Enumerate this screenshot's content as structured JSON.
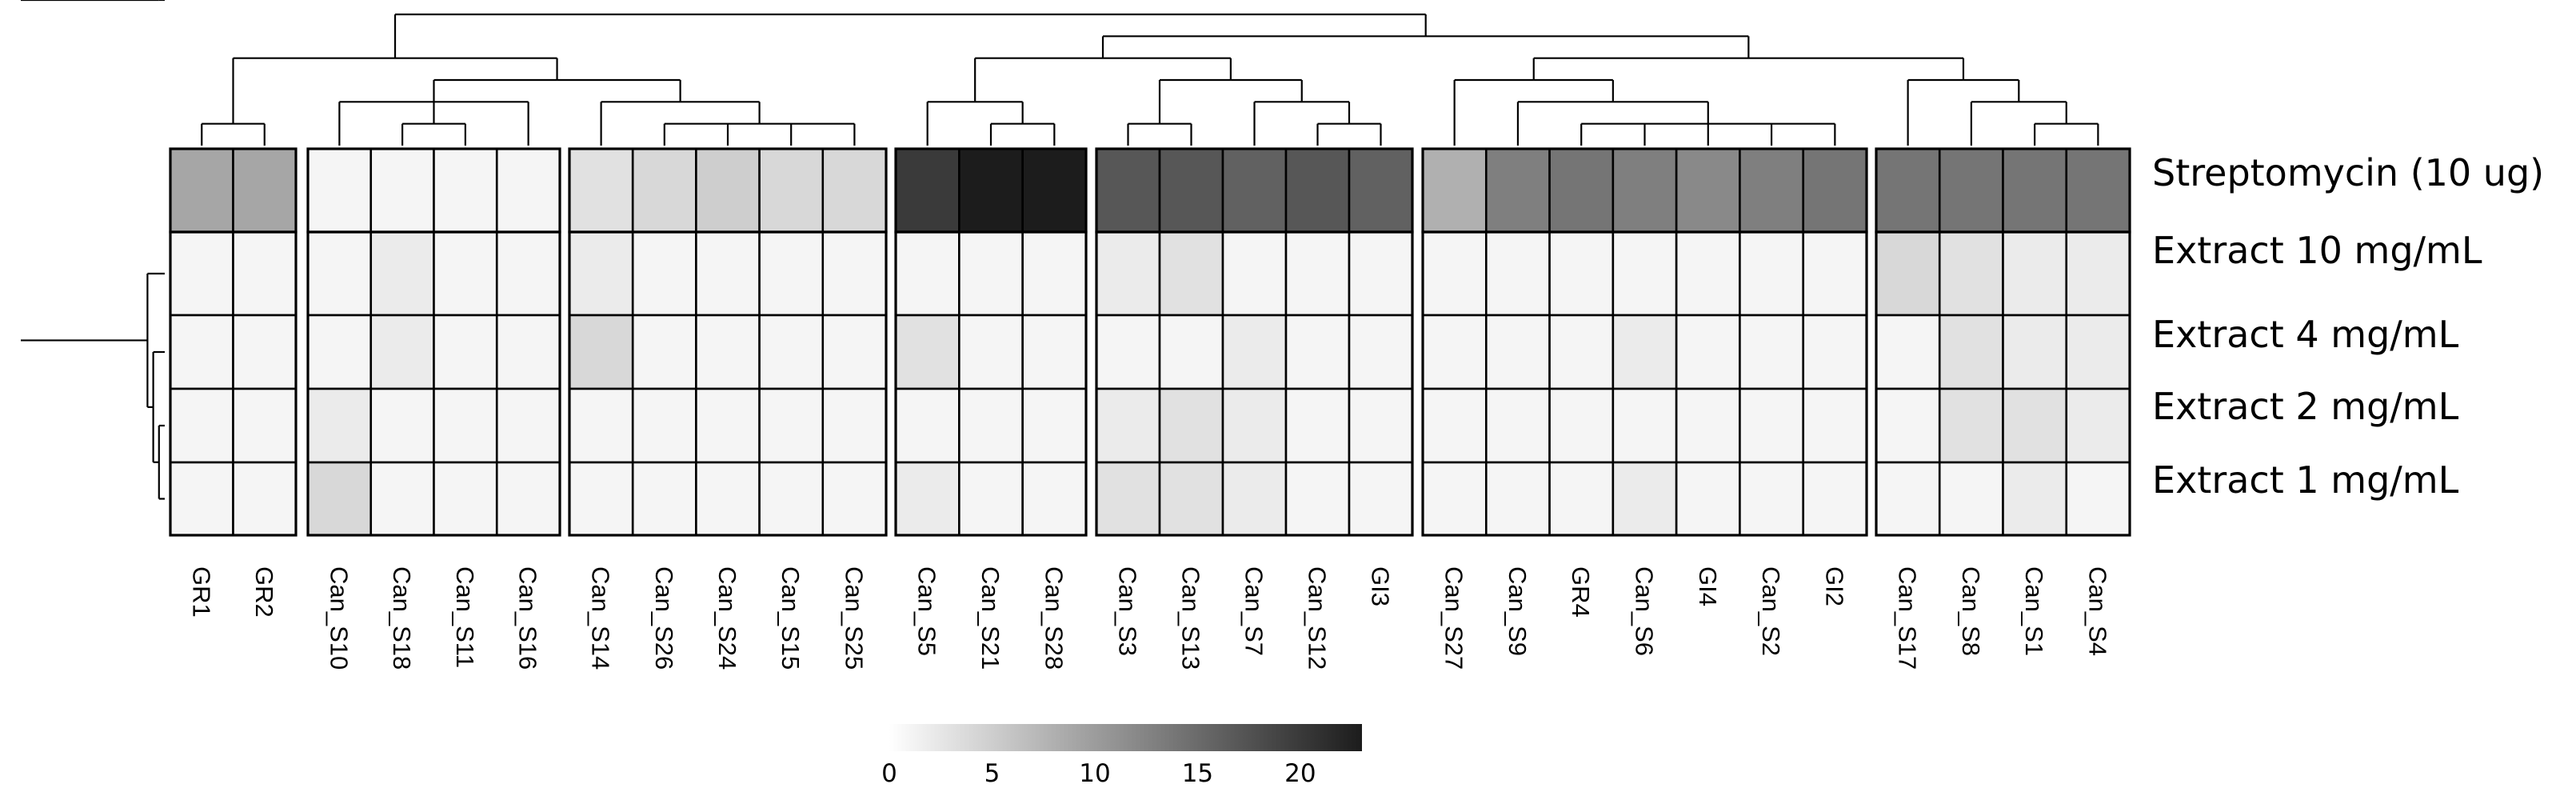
{
  "chart_data": {
    "type": "heatmap",
    "rows": [
      "Streptomycin (10 ug)",
      "Extract 10 mg/mL",
      "Extract 4 mg/mL",
      "Extract 2 mg/mL",
      "Extract 1 mg/mL"
    ],
    "columns": [
      "GR1",
      "GR2",
      "Can_S10",
      "Can_S18",
      "Can_S11",
      "Can_S16",
      "Can_S14",
      "Can_S26",
      "Can_S24",
      "Can_S15",
      "Can_S25",
      "Can_S5",
      "Can_S21",
      "Can_S28",
      "Can_S3",
      "Can_S13",
      "Can_S7",
      "Can_S12",
      "GI3",
      "Can_S27",
      "Can_S9",
      "GR4",
      "Can_S6",
      "GI4",
      "Can_S2",
      "GI2",
      "Can_S17",
      "Can_S8",
      "Can_S1",
      "Can_S4"
    ],
    "column_groups": [
      2,
      4,
      5,
      3,
      5,
      7,
      4
    ],
    "row_groups": [
      1,
      4
    ],
    "values": [
      [
        9,
        9,
        1,
        1,
        1,
        1,
        3,
        4,
        5,
        4,
        4,
        20,
        23,
        23,
        17,
        17,
        16,
        17,
        16,
        8,
        13,
        14,
        13,
        12,
        13,
        14,
        14,
        14,
        14,
        14
      ],
      [
        1,
        1,
        1,
        2,
        1,
        1,
        2,
        1,
        1,
        1,
        1,
        1,
        1,
        1,
        2,
        3,
        1,
        1,
        1,
        1,
        1,
        1,
        1,
        1,
        1,
        1,
        4,
        3,
        2,
        2
      ],
      [
        1,
        1,
        1,
        2,
        1,
        1,
        4,
        1,
        1,
        1,
        1,
        3,
        1,
        1,
        1,
        1,
        2,
        1,
        1,
        1,
        1,
        1,
        2,
        1,
        1,
        1,
        1,
        3,
        2,
        2
      ],
      [
        1,
        1,
        2,
        1,
        1,
        1,
        1,
        1,
        1,
        1,
        1,
        1,
        1,
        1,
        2,
        3,
        2,
        1,
        1,
        1,
        1,
        1,
        1,
        1,
        1,
        1,
        1,
        3,
        3,
        2
      ],
      [
        1,
        1,
        4,
        1,
        1,
        1,
        1,
        1,
        1,
        1,
        1,
        2,
        1,
        1,
        3,
        3,
        2,
        1,
        1,
        1,
        1,
        1,
        2,
        1,
        1,
        1,
        1,
        1,
        2,
        1
      ]
    ],
    "color_scale": {
      "min": 0,
      "max": 23,
      "low_color": "#ffffff",
      "high_color": "#1c1c1c",
      "ticks": [
        0,
        5,
        10,
        15,
        20
      ]
    },
    "column_dendrogram": "((GR1,GR2),((Can_S10,(Can_S18,Can_S11),Can_S16),(Can_S14,(Can_S26,Can_S24,Can_S15,Can_S25)))),(((Can_S5,(Can_S21,Can_S28)),((Can_S3,Can_S13),(Can_S7,(Can_S12,GI3)))),((Can_S27,(Can_S9,(GR4,Can_S6,GI4,Can_S2,GI2))),(Can_S17,(Can_S8,(Can_S1,Can_S4)))))",
    "row_dendrogram": "(Streptomycin (10 ug),(Extract 10 mg/mL,(Extract 4 mg/mL,(Extract 2 mg/mL,Extract 1 mg/mL))))"
  }
}
